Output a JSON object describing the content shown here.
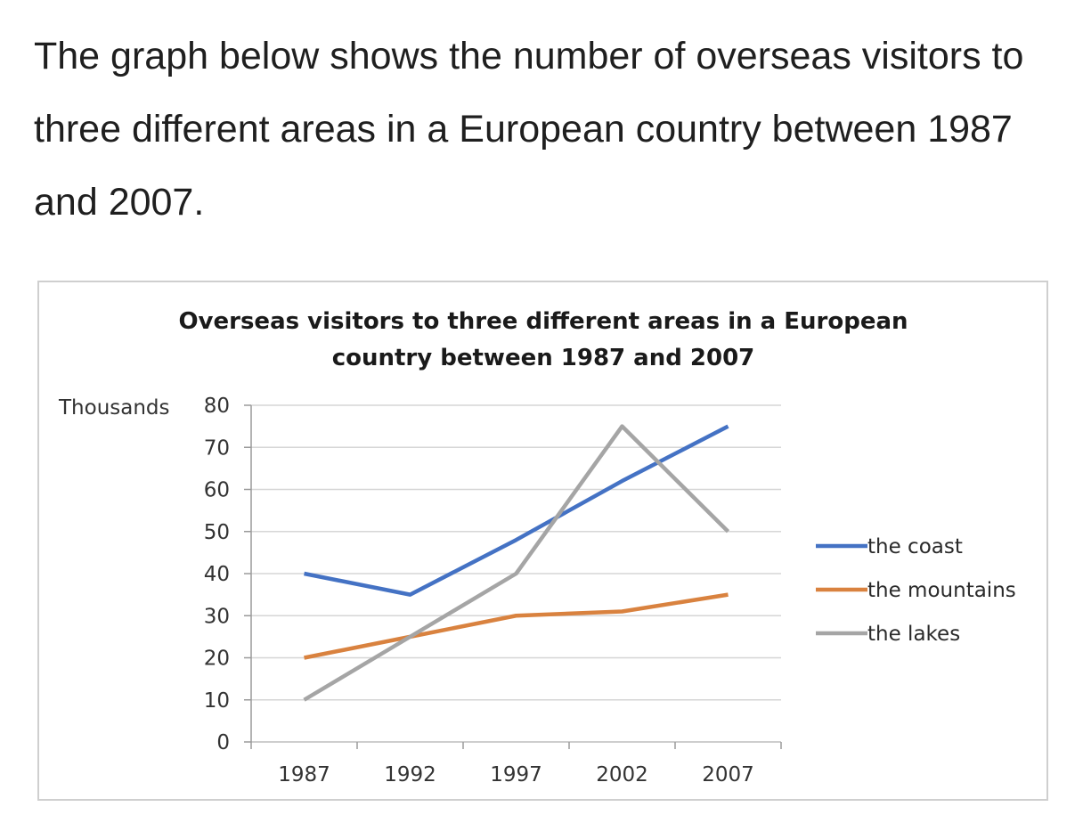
{
  "intro_text": "The graph below shows the number of overseas visitors to three different areas in a European country between 1987 and 2007.",
  "chart_data": {
    "type": "line",
    "title_line1": "Overseas visitors to three different areas in a European",
    "title_line2": "country between 1987 and 2007",
    "ylabel": "Thousands",
    "xlabel": "",
    "categories": [
      "1987",
      "1992",
      "1997",
      "2002",
      "2007"
    ],
    "ylim": [
      0,
      80
    ],
    "yticks": [
      "0",
      "10",
      "20",
      "30",
      "40",
      "50",
      "60",
      "70",
      "80"
    ],
    "grid": "horizontal",
    "legend_position": "right",
    "series": [
      {
        "name": "the coast",
        "color": "#4472c4",
        "values": [
          40,
          35,
          48,
          62,
          75
        ]
      },
      {
        "name": "the mountains",
        "color": "#d9823f",
        "values": [
          20,
          25,
          30,
          31,
          35
        ]
      },
      {
        "name": "the lakes",
        "color": "#a5a5a5",
        "values": [
          10,
          25,
          40,
          75,
          50
        ]
      }
    ]
  }
}
